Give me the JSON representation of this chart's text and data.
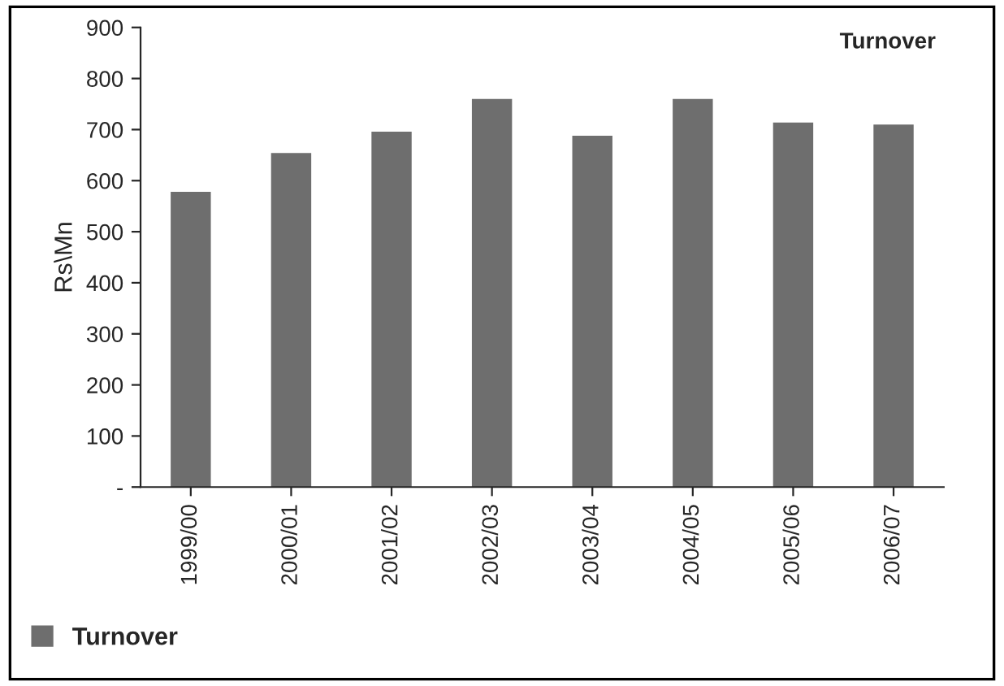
{
  "chart_data": {
    "type": "bar",
    "title": "Turnover",
    "ylabel": "Rs\\Mn",
    "categories": [
      "1999/00",
      "2000/01",
      "2001/02",
      "2002/03",
      "2003/04",
      "2004/05",
      "2005/06",
      "2006/07"
    ],
    "series": [
      {
        "name": "Turnover",
        "color": "#6e6e6e",
        "values": [
          578,
          654,
          696,
          760,
          688,
          760,
          714,
          710
        ]
      }
    ],
    "ylim": [
      0,
      900
    ],
    "yticks": [
      {
        "value": 0,
        "label": "-"
      },
      100,
      200,
      300,
      400,
      500,
      600,
      700,
      800,
      900
    ],
    "grid": false,
    "legend": "bottom left"
  }
}
